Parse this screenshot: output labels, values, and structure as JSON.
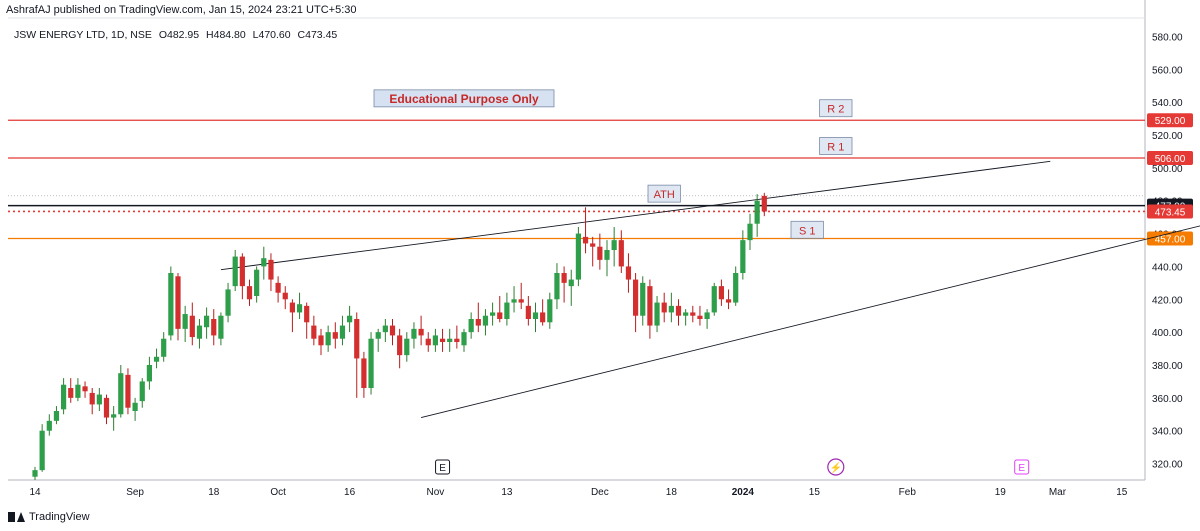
{
  "header": {
    "published": "AshrafAJ published on TradingView.com, Jan 15, 2024 23:21 UTC+5:30"
  },
  "symbol": {
    "name": "JSW ENERGY LTD, 1D, NSE",
    "open": "O482.95",
    "high": "H484.80",
    "low": "L470.60",
    "close": "C473.45"
  },
  "footer": {
    "brand": "TradingView"
  },
  "colors": {
    "up": "#26a69a",
    "up_body": "#2e9e4a",
    "down": "#ef5350",
    "down_body": "#d32f2f",
    "resistance": "#e53935",
    "support": "#f57c00",
    "ath": "#131722",
    "trendline": "#131722"
  },
  "chart_data": {
    "type": "candlestick",
    "title": "JSW ENERGY LTD, 1D, NSE",
    "ylim": [
      310,
      590
    ],
    "y_ticks": [
      320,
      340,
      360,
      380,
      400,
      420,
      440,
      460,
      480,
      500,
      520,
      540,
      560,
      580
    ],
    "x_ticks": [
      {
        "label": "14",
        "bar": 0
      },
      {
        "label": "Sep",
        "bar": 14
      },
      {
        "label": "18",
        "bar": 25
      },
      {
        "label": "Oct",
        "bar": 34
      },
      {
        "label": "16",
        "bar": 44
      },
      {
        "label": "Nov",
        "bar": 56
      },
      {
        "label": "13",
        "bar": 66
      },
      {
        "label": "Dec",
        "bar": 79
      },
      {
        "label": "18",
        "bar": 89
      },
      {
        "label": "2024",
        "bar": 99
      },
      {
        "label": "15",
        "bar": 109
      },
      {
        "label": "Feb",
        "bar": 122
      },
      {
        "label": "19",
        "bar": 135
      },
      {
        "label": "Mar",
        "bar": 143
      },
      {
        "label": "15",
        "bar": 152
      }
    ],
    "candles": [
      [
        312,
        318,
        310,
        316
      ],
      [
        316,
        344,
        315,
        340
      ],
      [
        340,
        350,
        337,
        346
      ],
      [
        346,
        355,
        344,
        352
      ],
      [
        353,
        372,
        350,
        368
      ],
      [
        366,
        372,
        357,
        360
      ],
      [
        360,
        372,
        358,
        368
      ],
      [
        367,
        370,
        360,
        364
      ],
      [
        363,
        366,
        350,
        356
      ],
      [
        356,
        366,
        352,
        362
      ],
      [
        360,
        362,
        344,
        348
      ],
      [
        348,
        355,
        340,
        350
      ],
      [
        350,
        380,
        348,
        375
      ],
      [
        374,
        378,
        350,
        354
      ],
      [
        352,
        360,
        346,
        357
      ],
      [
        358,
        372,
        354,
        370
      ],
      [
        370,
        385,
        365,
        380
      ],
      [
        382,
        390,
        378,
        385
      ],
      [
        385,
        400,
        382,
        396
      ],
      [
        398,
        440,
        395,
        436
      ],
      [
        434,
        436,
        395,
        402
      ],
      [
        402,
        416,
        394,
        411
      ],
      [
        410,
        418,
        392,
        397
      ],
      [
        396,
        408,
        390,
        404
      ],
      [
        403,
        415,
        396,
        410
      ],
      [
        408,
        414,
        392,
        398
      ],
      [
        396,
        412,
        392,
        410
      ],
      [
        410,
        430,
        406,
        426
      ],
      [
        428,
        450,
        425,
        446
      ],
      [
        446,
        448,
        420,
        428
      ],
      [
        428,
        432,
        416,
        420
      ],
      [
        422,
        440,
        418,
        438
      ],
      [
        440,
        452,
        432,
        445
      ],
      [
        444,
        448,
        425,
        432
      ],
      [
        430,
        434,
        418,
        424
      ],
      [
        424,
        428,
        414,
        420
      ],
      [
        418,
        420,
        400,
        412
      ],
      [
        412,
        424,
        408,
        417
      ],
      [
        416,
        418,
        396,
        406
      ],
      [
        404,
        410,
        392,
        396
      ],
      [
        398,
        402,
        386,
        392
      ],
      [
        392,
        404,
        388,
        400
      ],
      [
        400,
        406,
        390,
        396
      ],
      [
        396,
        410,
        392,
        404
      ],
      [
        406,
        416,
        400,
        410
      ],
      [
        408,
        412,
        360,
        384
      ],
      [
        384,
        388,
        360,
        366
      ],
      [
        366,
        400,
        362,
        396
      ],
      [
        396,
        402,
        388,
        400
      ],
      [
        400,
        408,
        394,
        404
      ],
      [
        404,
        408,
        392,
        398
      ],
      [
        398,
        402,
        378,
        386
      ],
      [
        386,
        400,
        382,
        396
      ],
      [
        396,
        406,
        390,
        402
      ],
      [
        402,
        410,
        392,
        398
      ],
      [
        396,
        400,
        388,
        392
      ],
      [
        392,
        402,
        388,
        398
      ],
      [
        396,
        402,
        388,
        394
      ],
      [
        394,
        402,
        388,
        396
      ],
      [
        396,
        404,
        390,
        394
      ],
      [
        392,
        402,
        388,
        400
      ],
      [
        400,
        412,
        396,
        408
      ],
      [
        408,
        418,
        400,
        404
      ],
      [
        404,
        414,
        398,
        410
      ],
      [
        410,
        418,
        404,
        412
      ],
      [
        412,
        422,
        406,
        408
      ],
      [
        408,
        424,
        404,
        418
      ],
      [
        418,
        428,
        412,
        420
      ],
      [
        420,
        430,
        414,
        418
      ],
      [
        416,
        422,
        404,
        408
      ],
      [
        408,
        418,
        400,
        412
      ],
      [
        412,
        420,
        404,
        406
      ],
      [
        406,
        424,
        402,
        420
      ],
      [
        420,
        442,
        414,
        436
      ],
      [
        436,
        440,
        418,
        430
      ],
      [
        428,
        438,
        416,
        432
      ],
      [
        432,
        464,
        428,
        460
      ],
      [
        458,
        476,
        448,
        454
      ],
      [
        454,
        458,
        440,
        452
      ],
      [
        452,
        460,
        438,
        444
      ],
      [
        444,
        456,
        434,
        450
      ],
      [
        450,
        464,
        440,
        456
      ],
      [
        456,
        462,
        436,
        440
      ],
      [
        440,
        448,
        424,
        432
      ],
      [
        432,
        436,
        400,
        410
      ],
      [
        410,
        434,
        404,
        430
      ],
      [
        428,
        432,
        396,
        404
      ],
      [
        404,
        422,
        400,
        418
      ],
      [
        418,
        424,
        406,
        412
      ],
      [
        412,
        424,
        406,
        416
      ],
      [
        416,
        420,
        404,
        410
      ],
      [
        410,
        414,
        404,
        412
      ],
      [
        412,
        416,
        406,
        410
      ],
      [
        410,
        416,
        404,
        408
      ],
      [
        408,
        414,
        402,
        412
      ],
      [
        412,
        430,
        410,
        428
      ],
      [
        428,
        432,
        416,
        420
      ],
      [
        420,
        426,
        414,
        418
      ],
      [
        418,
        440,
        416,
        436
      ],
      [
        436,
        462,
        432,
        456
      ],
      [
        456,
        472,
        450,
        466
      ],
      [
        466,
        484,
        458,
        480
      ],
      [
        482.95,
        484.8,
        470.6,
        473.45
      ]
    ],
    "levels": [
      {
        "name": "R 2",
        "value": 529.0,
        "price_label": "529.00",
        "color": "#e53935"
      },
      {
        "name": "R 1",
        "value": 506.0,
        "price_label": "506.00",
        "color": "#e53935"
      },
      {
        "name": "ATH",
        "value": 477.0,
        "price_label": "477.00",
        "color": "#131722"
      },
      {
        "name": "S 1",
        "value": 457.0,
        "price_label": "457.00",
        "color": "#f57c00"
      }
    ],
    "last_price": {
      "value": 473.45,
      "label": "473.45",
      "color": "#e53935"
    },
    "trendlines": [
      {
        "name": "upper-trendline",
        "from": {
          "bar": 26,
          "price": 438
        },
        "to": {
          "bar": 142,
          "price": 504
        }
      },
      {
        "name": "lower-trendline",
        "from": {
          "bar": 54,
          "price": 348
        },
        "to": {
          "bar": 167,
          "price": 469
        }
      }
    ],
    "annotations": [
      {
        "text": "Educational Purpose Only",
        "anchor_bar": 60,
        "price": 542,
        "style": "banner"
      },
      {
        "text": "R 2",
        "anchor_bar": 112,
        "price": 536,
        "style": "tag"
      },
      {
        "text": "R 1",
        "anchor_bar": 112,
        "price": 513,
        "style": "tag"
      },
      {
        "text": "ATH",
        "anchor_bar": 88,
        "price": 484,
        "style": "tag"
      },
      {
        "text": "S 1",
        "anchor_bar": 108,
        "price": 462,
        "style": "tag"
      }
    ],
    "events": [
      {
        "type": "earnings",
        "label": "E",
        "bar": 57,
        "style": "past"
      },
      {
        "type": "dividend",
        "label": "⚡",
        "bar": 112,
        "style": "upcoming"
      },
      {
        "type": "earnings",
        "label": "E",
        "bar": 138,
        "style": "upcoming"
      }
    ],
    "grid": false
  }
}
